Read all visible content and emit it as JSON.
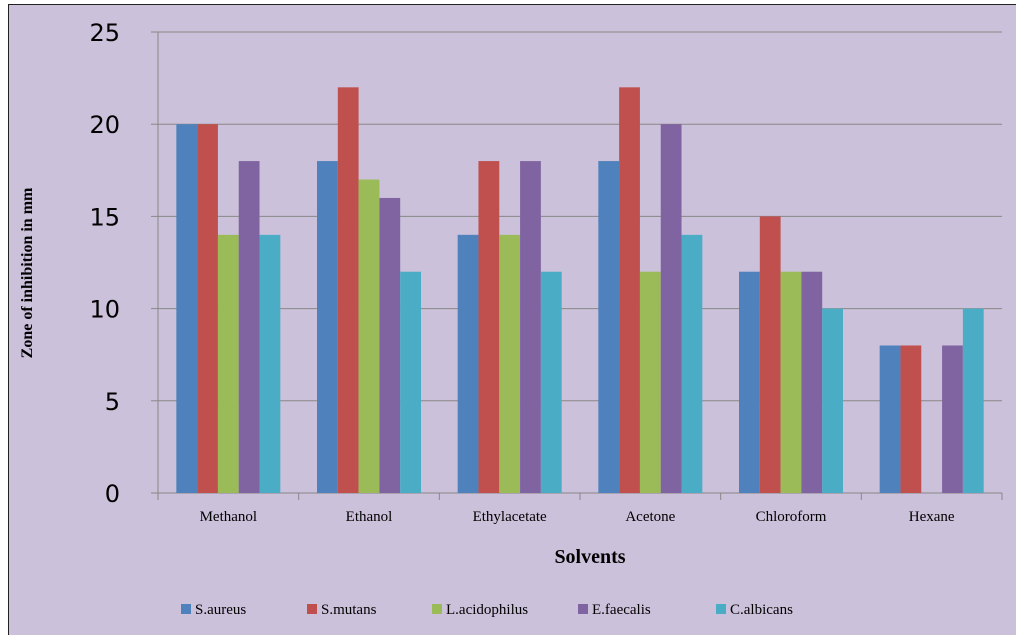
{
  "chart_data": {
    "type": "bar",
    "title": "",
    "xlabel": "Solvents",
    "ylabel": "Zone of inhibition in mm",
    "ylim": [
      0,
      25
    ],
    "yticks": [
      0,
      5,
      10,
      15,
      20,
      25
    ],
    "grid": true,
    "legend_position": "bottom",
    "categories": [
      "Methanol",
      "Ethanol",
      "Ethylacetate",
      "Acetone",
      "Chloroform",
      "Hexane"
    ],
    "series": [
      {
        "name": "S.aureus",
        "color": "#4f81bd",
        "values": [
          20,
          18,
          14,
          18,
          12,
          8
        ]
      },
      {
        "name": "S.mutans",
        "color": "#c0504d",
        "values": [
          20,
          22,
          18,
          22,
          15,
          8
        ]
      },
      {
        "name": "L.acidophilus",
        "color": "#9bbb59",
        "values": [
          14,
          17,
          14,
          12,
          12,
          0
        ]
      },
      {
        "name": "E.faecalis",
        "color": "#8064a2",
        "values": [
          18,
          16,
          18,
          20,
          12,
          8
        ]
      },
      {
        "name": "C.albicans",
        "color": "#4bacc6",
        "values": [
          14,
          12,
          12,
          14,
          10,
          10
        ]
      }
    ]
  }
}
